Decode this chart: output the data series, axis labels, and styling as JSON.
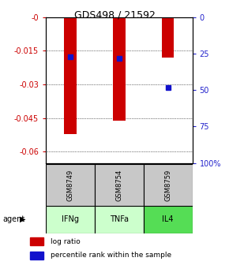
{
  "title": "GDS498 / 21592",
  "samples": [
    "GSM8749",
    "GSM8754",
    "GSM8759"
  ],
  "agents": [
    "IFNg",
    "TNFa",
    "IL4"
  ],
  "log_ratios": [
    -0.052,
    -0.046,
    -0.018
  ],
  "percentile_ranks": [
    27,
    28,
    48
  ],
  "ylim_left": [
    -0.065,
    0.0
  ],
  "ylim_right": [
    0,
    100
  ],
  "yticks_left": [
    0,
    -0.015,
    -0.03,
    -0.045,
    -0.06
  ],
  "yticks_left_labels": [
    "-0",
    "-0.015",
    "-0.03",
    "-0.045",
    "-0.06"
  ],
  "yticks_right": [
    100,
    75,
    50,
    25,
    0
  ],
  "yticks_right_labels": [
    "100%",
    "75",
    "50",
    "25",
    "0"
  ],
  "bar_color": "#cc0000",
  "dot_color": "#1111cc",
  "sample_bg": "#c8c8c8",
  "agent_colors": [
    "#ccffcc",
    "#ccffcc",
    "#55dd55"
  ],
  "left_tick_color": "#cc0000",
  "right_tick_color": "#2222cc",
  "bar_width": 0.25,
  "dot_size": 5
}
